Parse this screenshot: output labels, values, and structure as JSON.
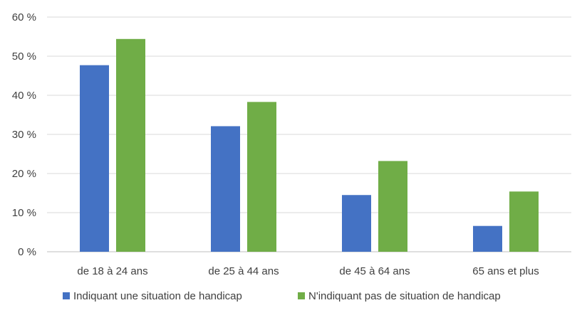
{
  "chart_data": {
    "type": "bar",
    "categories": [
      "de 18 à 24 ans",
      "de 25 à 44 ans",
      "de 45 à 64 ans",
      "65 ans et plus"
    ],
    "series": [
      {
        "name": "Indiquant une situation de handicap",
        "color": "#4472C4",
        "values": [
          47.7,
          32.1,
          14.5,
          6.6
        ]
      },
      {
        "name": "N'indiquant pas de situation de handicap",
        "color": "#70AD47",
        "values": [
          54.4,
          38.3,
          23.2,
          15.4
        ]
      }
    ],
    "ylim": [
      0,
      60
    ],
    "yticks": [
      0,
      10,
      20,
      30,
      40,
      50,
      60
    ],
    "ytick_labels": [
      "0 %",
      "10 %",
      "20 %",
      "30 %",
      "40 %",
      "50 %",
      "60 %"
    ],
    "grid": true,
    "legend_position": "bottom",
    "title": "",
    "xlabel": "",
    "ylabel": ""
  }
}
